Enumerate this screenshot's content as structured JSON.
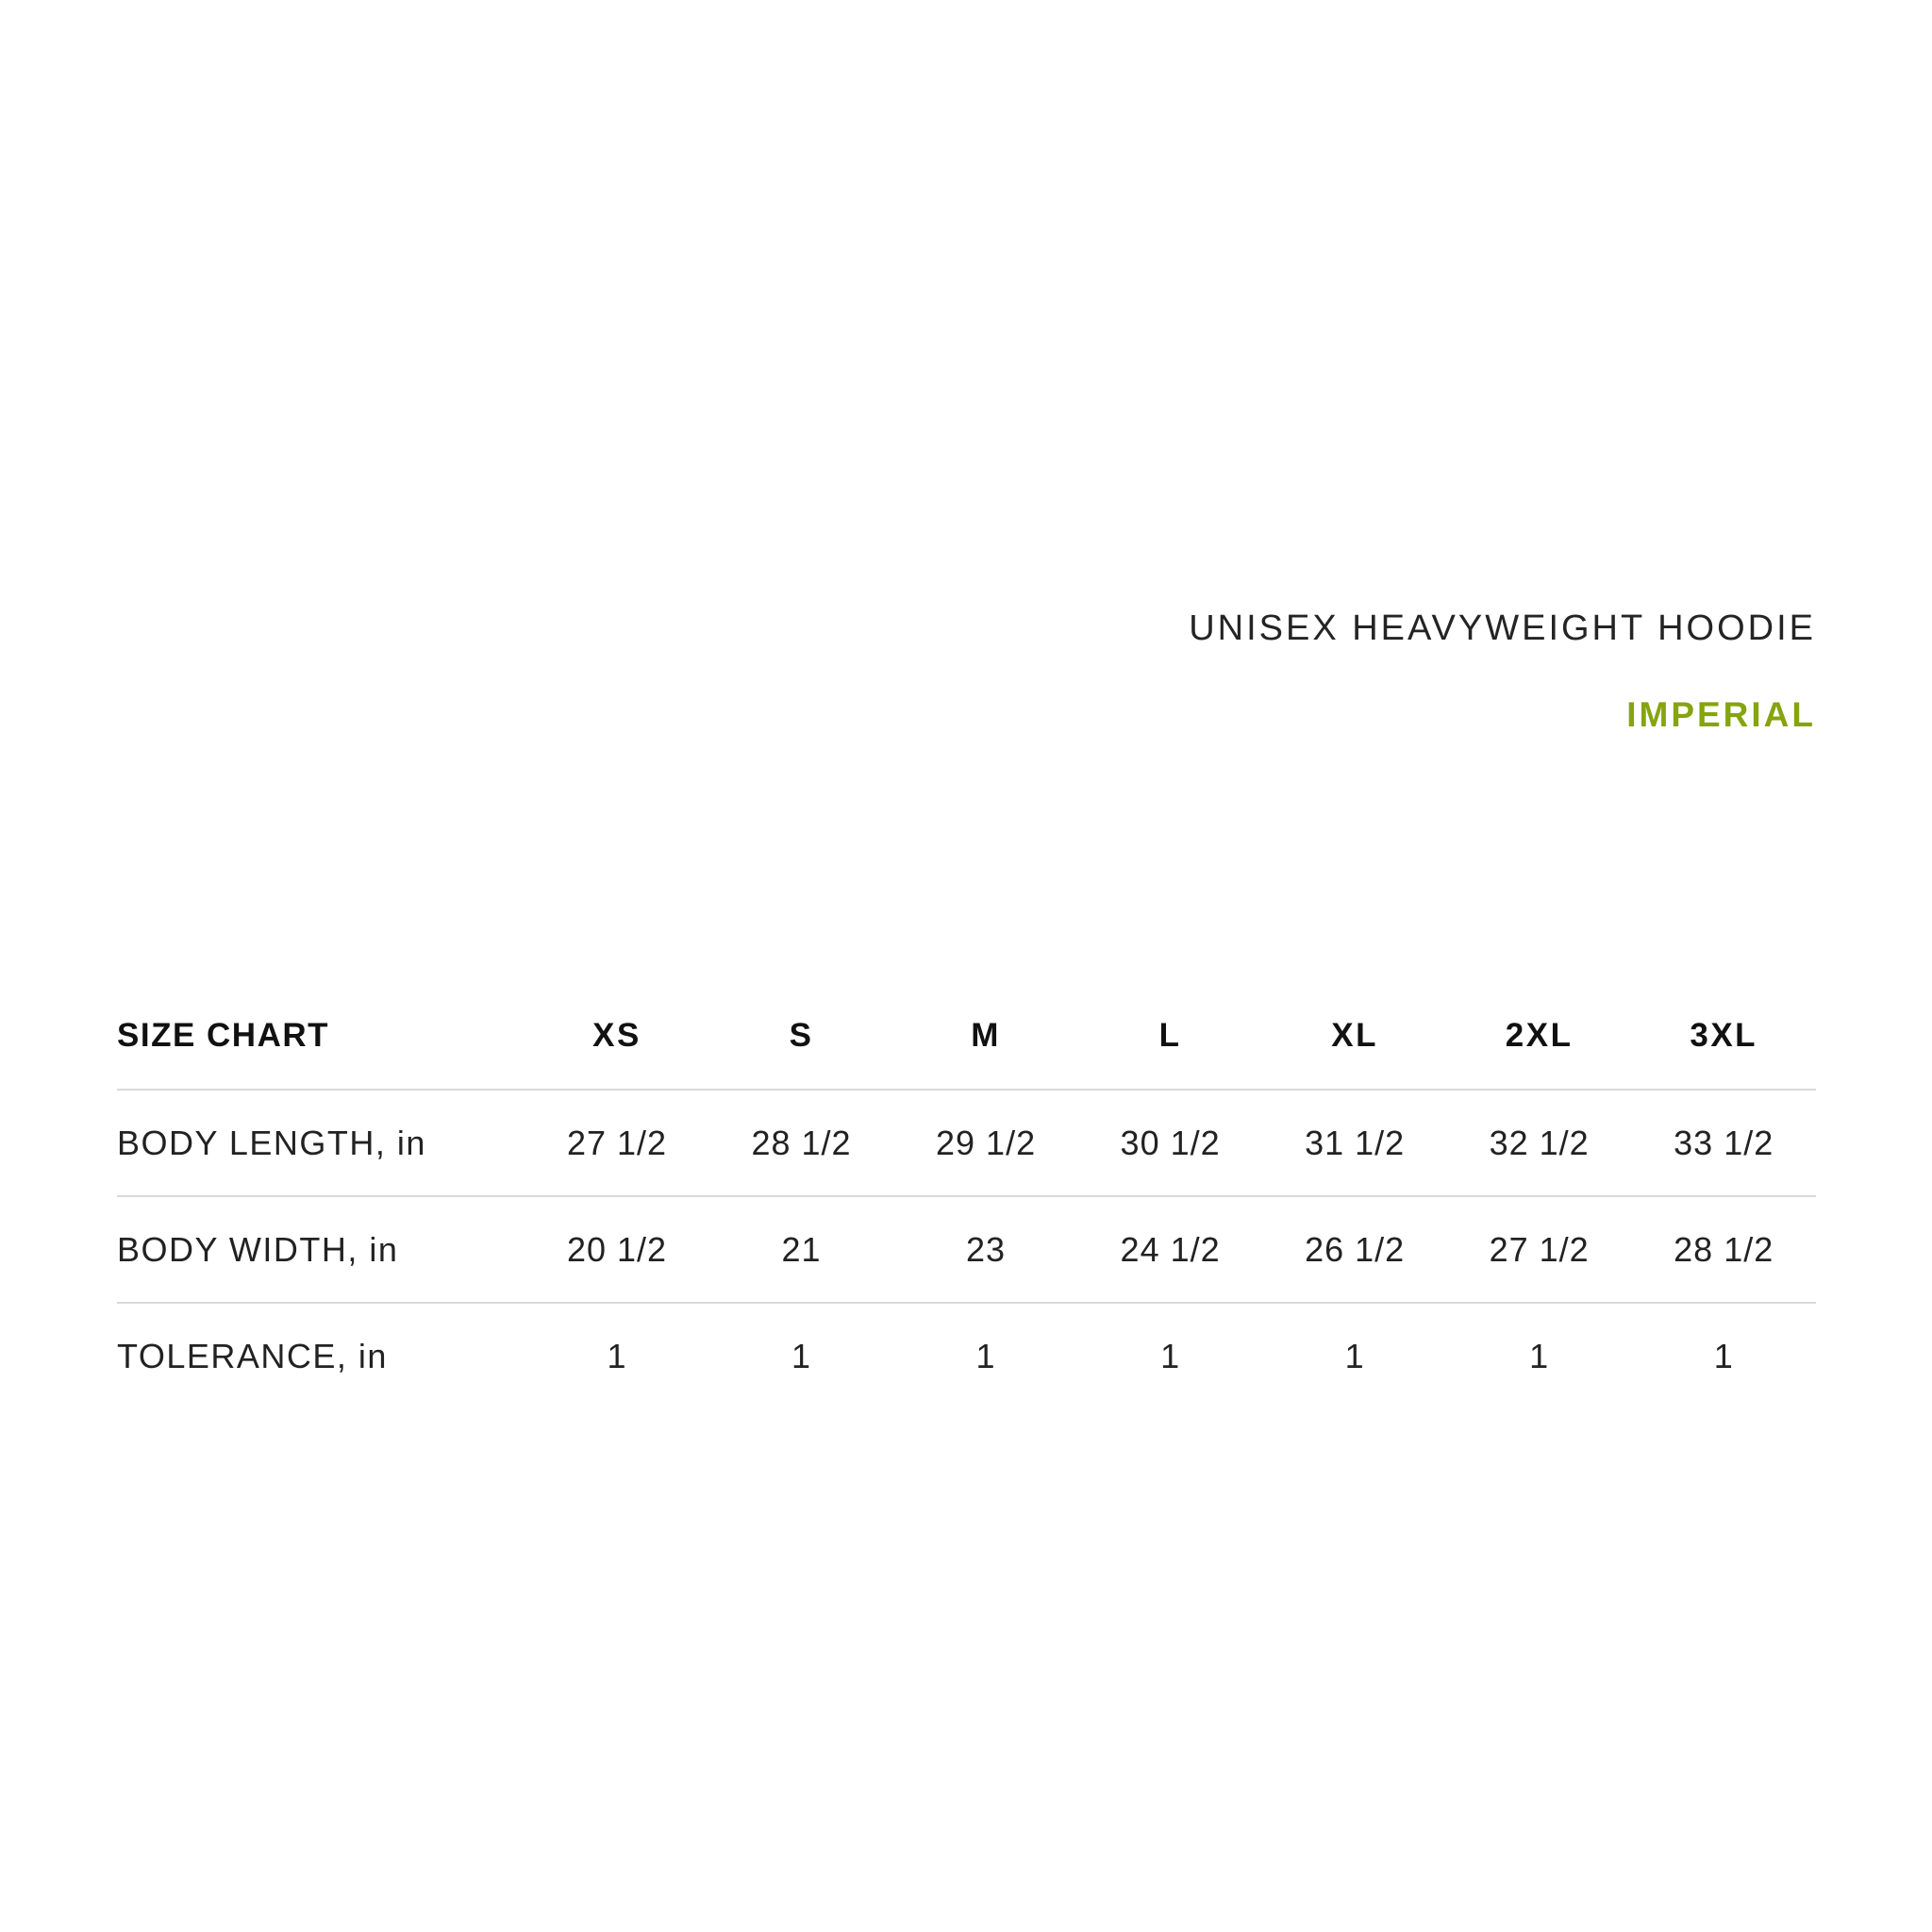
{
  "page": {
    "background_color": "#ffffff",
    "text_color": "#222222",
    "accent_color": "#85a40f",
    "divider_color": "#d9d9d9"
  },
  "header": {
    "title": "UNISEX HEAVYWEIGHT HOODIE",
    "units_label": "IMPERIAL"
  },
  "size_chart": {
    "corner_label": "SIZE CHART",
    "columns": [
      "XS",
      "S",
      "M",
      "L",
      "XL",
      "2XL",
      "3XL"
    ],
    "rows": [
      {
        "label": "BODY LENGTH, in",
        "values": [
          "27 1/2",
          "28 1/2",
          "29 1/2",
          "30 1/2",
          "31 1/2",
          "32 1/2",
          "33 1/2"
        ]
      },
      {
        "label": "BODY WIDTH, in",
        "values": [
          "20 1/2",
          "21",
          "23",
          "24 1/2",
          "26 1/2",
          "27 1/2",
          "28 1/2"
        ]
      },
      {
        "label": "TOLERANCE, in",
        "values": [
          "1",
          "1",
          "1",
          "1",
          "1",
          "1",
          "1"
        ]
      }
    ]
  }
}
